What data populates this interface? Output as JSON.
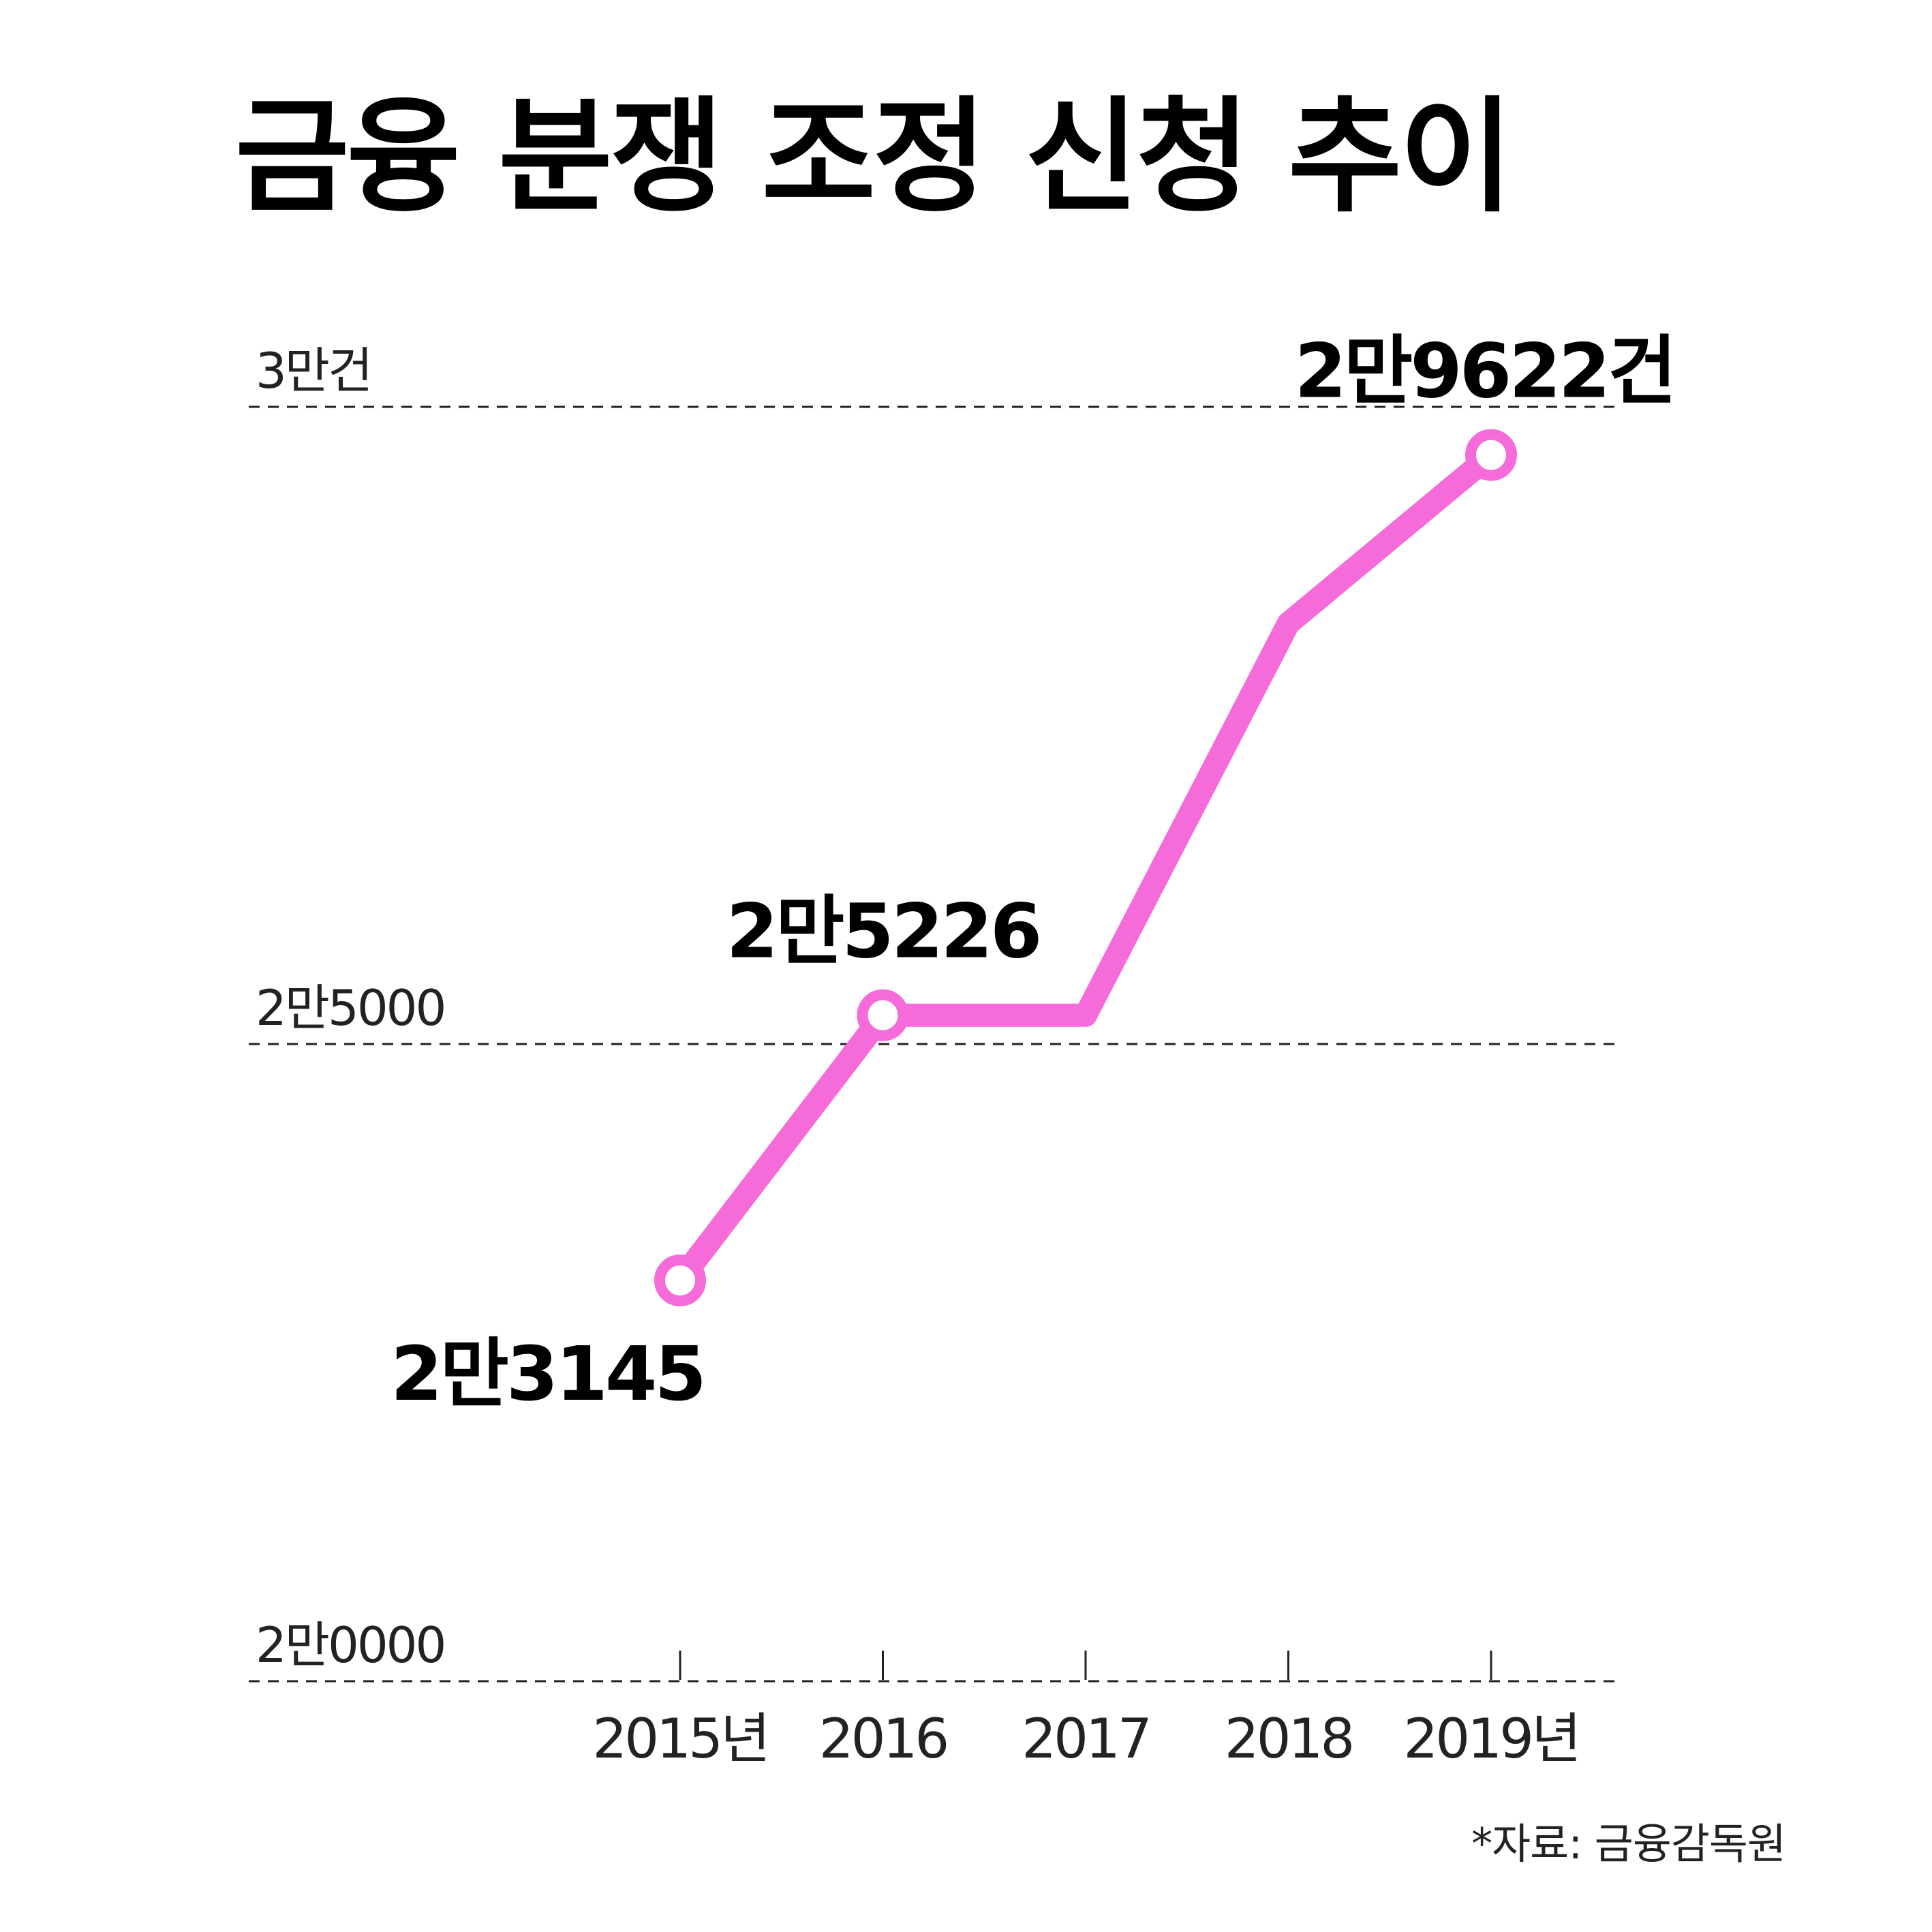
{
  "title": "금융 분쟁 조정 신청 추이",
  "source": "*자료: 금융감독원",
  "colors": {
    "line": "#F56BD9",
    "grid": "#222222",
    "marker_fill": "#FFFFFF"
  },
  "chart_data": {
    "type": "line",
    "title": "금융 분쟁 조정 신청 추이",
    "x": [
      2015,
      2016,
      2017,
      2018,
      2019
    ],
    "xtick_labels": [
      "2015년",
      "2016",
      "2017",
      "2018",
      "2019년"
    ],
    "yticks": [
      20000,
      25000,
      30000
    ],
    "ytick_labels": [
      "2만0000",
      "2만5000",
      "3만건"
    ],
    "ylim": [
      20000,
      30000
    ],
    "grid": "horizontal dashed",
    "series": [
      {
        "values": [
          23145,
          25226,
          25226,
          28300,
          29622
        ],
        "markers": [
          true,
          true,
          false,
          false,
          true
        ]
      }
    ],
    "annotations": [
      {
        "index": 0,
        "text": "2만3145",
        "position": "below-left"
      },
      {
        "index": 1,
        "text": "2만5226",
        "position": "above"
      },
      {
        "index": 4,
        "text": "2만9622건",
        "position": "above"
      }
    ]
  }
}
